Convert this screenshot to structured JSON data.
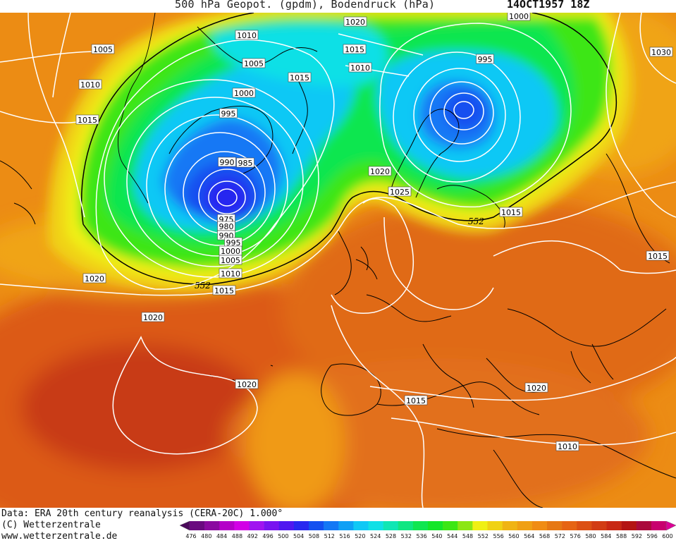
{
  "header": {
    "title": "500 hPa Geopot. (gpdm), Bodendruck (hPa)",
    "datetime": "14OCT1957 18Z"
  },
  "map": {
    "isobar_labels": [
      {
        "text": "1020"
      },
      {
        "text": "1000"
      },
      {
        "text": "1030"
      },
      {
        "text": "1005"
      },
      {
        "text": "1010"
      },
      {
        "text": "1015"
      },
      {
        "text": "1010"
      },
      {
        "text": "995"
      },
      {
        "text": "1010"
      },
      {
        "text": "1005"
      },
      {
        "text": "1015"
      },
      {
        "text": "1000"
      },
      {
        "text": "995"
      },
      {
        "text": "990"
      },
      {
        "text": "985"
      },
      {
        "text": "1020"
      },
      {
        "text": "1025"
      },
      {
        "text": "1015"
      },
      {
        "text": "1015"
      },
      {
        "text": "975"
      },
      {
        "text": "980"
      },
      {
        "text": "990"
      },
      {
        "text": "995"
      },
      {
        "text": "1000"
      },
      {
        "text": "1005"
      },
      {
        "text": "1010"
      },
      {
        "text": "1015"
      },
      {
        "text": "1020"
      },
      {
        "text": "1020"
      },
      {
        "text": "1020"
      },
      {
        "text": "1020"
      },
      {
        "text": "1015"
      },
      {
        "text": "1015"
      },
      {
        "text": "1010"
      }
    ],
    "height_labels": [
      {
        "text": "552"
      },
      {
        "text": "552"
      }
    ]
  },
  "footer": {
    "data_line": "Data: ERA 20th century reanalysis (CERA-20C) 1.000°",
    "copyright": "(C) Wetterzentrale",
    "website": "www.wetterzentrale.de"
  },
  "colorbar": {
    "ticks": [
      "476",
      "480",
      "484",
      "488",
      "492",
      "496",
      "500",
      "504",
      "508",
      "512",
      "516",
      "520",
      "524",
      "528",
      "532",
      "536",
      "540",
      "544",
      "548",
      "552",
      "556",
      "560",
      "564",
      "568",
      "572",
      "576",
      "580",
      "584",
      "588",
      "592",
      "596",
      "600"
    ],
    "colors": [
      "#4a0a5a",
      "#6a0a80",
      "#8a0aa0",
      "#b400c8",
      "#d200e6",
      "#a014f0",
      "#7814f0",
      "#5018f0",
      "#2828f0",
      "#1450f0",
      "#1478f5",
      "#10a0f5",
      "#10c8f5",
      "#10e0e6",
      "#10e6b4",
      "#10e682",
      "#10e650",
      "#14e628",
      "#3ce614",
      "#8ce614",
      "#f0f014",
      "#f0d214",
      "#f0b414",
      "#f0a014",
      "#f08c14",
      "#e67814",
      "#e66414",
      "#dc5014",
      "#d23c14",
      "#c82814",
      "#b41414",
      "#aa0a3c",
      "#c8006e",
      "#dc0096"
    ]
  },
  "colors": {
    "low_blue": "#1450f0",
    "mid_blue": "#10c8f5",
    "green": "#10e650",
    "yellow": "#f0f014",
    "orange": "#f08c14",
    "dark_orange": "#dc5014",
    "red": "#c83214",
    "isobar": "#ffffff",
    "coast": "#000000"
  }
}
